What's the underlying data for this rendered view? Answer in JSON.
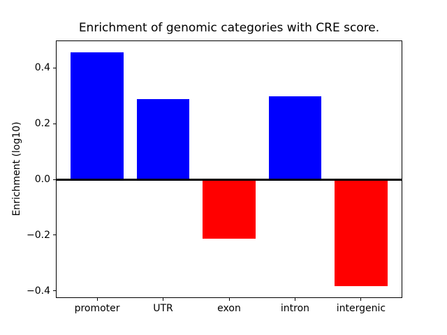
{
  "figure": {
    "background": "#ffffff",
    "text_color": "#000000"
  },
  "chart_data": {
    "type": "bar",
    "title": "Enrichment of genomic categories with CRE score.",
    "xlabel": "",
    "ylabel": "Enrichment (log10)",
    "categories": [
      "promoter",
      "UTR",
      "exon",
      "intron",
      "intergenic"
    ],
    "values": [
      0.46,
      0.29,
      -0.21,
      0.3,
      -0.38
    ],
    "bar_colors": [
      "#0000ff",
      "#0000ff",
      "#ff0000",
      "#0000ff",
      "#ff0000"
    ],
    "positive_color": "#0000ff",
    "negative_color": "#ff0000",
    "bar_width_fraction": 0.8,
    "ylim": [
      -0.426,
      0.499
    ],
    "yticks": [
      {
        "value": 0.4,
        "label": "0.4"
      },
      {
        "value": 0.2,
        "label": "0.2"
      },
      {
        "value": 0.0,
        "label": "0.0"
      },
      {
        "value": -0.2,
        "label": "−0.2"
      },
      {
        "value": -0.4,
        "label": "−0.4"
      }
    ],
    "zero_line": true,
    "grid": false,
    "legend": "none"
  }
}
